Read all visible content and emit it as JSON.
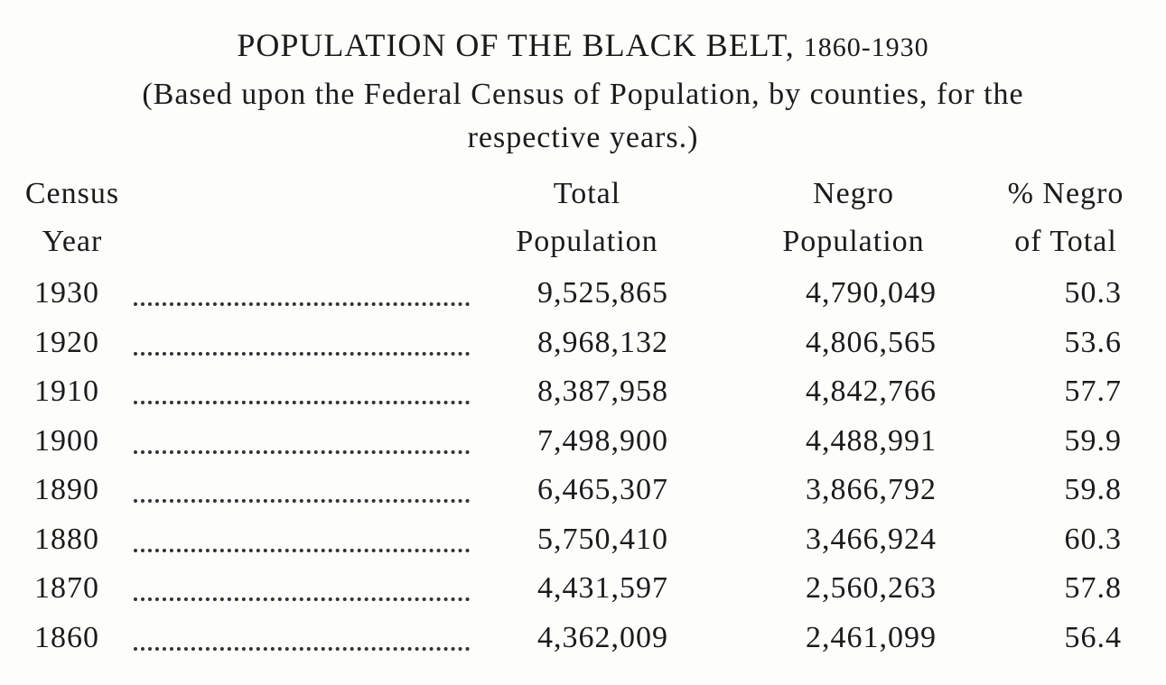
{
  "title": {
    "main": "POPULATION OF THE BLACK BELT,",
    "years": "1860-1930"
  },
  "subtitle": [
    "(Based upon the Federal Census of Population, by counties, for the",
    "respective years.)"
  ],
  "table": {
    "headers": [
      [
        "Census",
        "Year"
      ],
      [
        "Total",
        "Population"
      ],
      [
        "Negro",
        "Population"
      ],
      [
        "% Negro",
        "of Total"
      ]
    ],
    "rows": [
      [
        "1930",
        "9,525,865",
        "4,790,049",
        "50.3"
      ],
      [
        "1920",
        "8,968,132",
        "4,806,565",
        "53.6"
      ],
      [
        "1910",
        "8,387,958",
        "4,842,766",
        "57.7"
      ],
      [
        "1900",
        "7,498,900",
        "4,488,991",
        "59.9"
      ],
      [
        "1890",
        "6,465,307",
        "3,866,792",
        "59.8"
      ],
      [
        "1880",
        "5,750,410",
        "3,466,924",
        "60.3"
      ],
      [
        "1870",
        "4,431,597",
        "2,560,263",
        "57.8"
      ],
      [
        "1860",
        "4,362,009",
        "2,461,099",
        "56.4"
      ]
    ]
  }
}
